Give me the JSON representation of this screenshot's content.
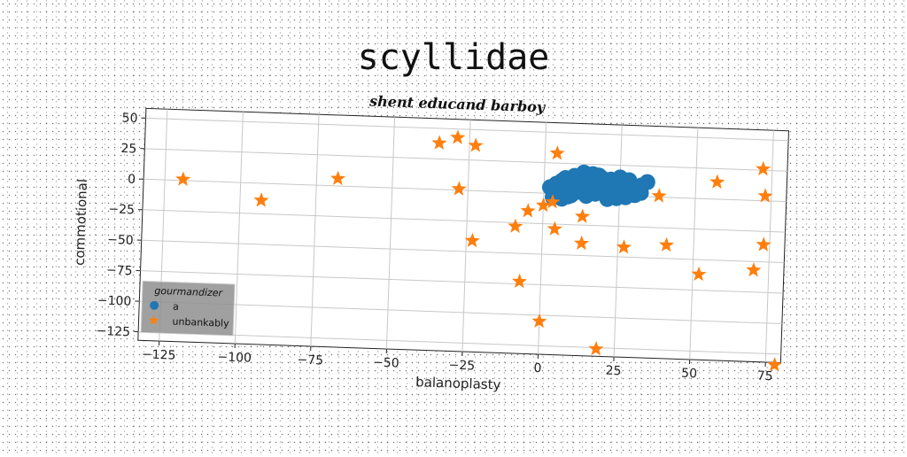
{
  "chart_data": {
    "type": "scatter",
    "title": "scyllidae",
    "subtitle": "shent educand barboy",
    "xlabel": "balanoplasty",
    "ylabel": "commotional",
    "xlim": [
      -132,
      80
    ],
    "ylim": [
      -132,
      58
    ],
    "xticks": [
      -125,
      -100,
      -75,
      -50,
      -25,
      0,
      25,
      50,
      75
    ],
    "yticks": [
      50,
      25,
      0,
      -25,
      -50,
      -75,
      -100,
      -125
    ],
    "grid": true,
    "legend": {
      "title": "gourmandizer",
      "placement": "lower-left"
    },
    "colors": {
      "a": "#1f77b4",
      "unbankably": "#ff7f0e"
    },
    "series": [
      {
        "name": "a",
        "marker": "circle",
        "points": [
          [
            2,
            5
          ],
          [
            4,
            8
          ],
          [
            6,
            11
          ],
          [
            8,
            5
          ],
          [
            10,
            9
          ],
          [
            12,
            14
          ],
          [
            14,
            10
          ],
          [
            16,
            7
          ],
          [
            18,
            12
          ],
          [
            20,
            8
          ],
          [
            22,
            4
          ],
          [
            24,
            10
          ],
          [
            26,
            6
          ],
          [
            28,
            11
          ],
          [
            30,
            8
          ],
          [
            32,
            9
          ],
          [
            34,
            12
          ],
          [
            5,
            0
          ],
          [
            8,
            -2
          ],
          [
            11,
            2
          ],
          [
            14,
            -1
          ],
          [
            17,
            1
          ],
          [
            20,
            3
          ],
          [
            23,
            0
          ],
          [
            26,
            2
          ],
          [
            29,
            4
          ],
          [
            32,
            3
          ],
          [
            3,
            -3
          ],
          [
            6,
            -4
          ],
          [
            9,
            -1
          ],
          [
            12,
            4
          ],
          [
            15,
            3
          ],
          [
            18,
            16
          ],
          [
            21,
            -3
          ],
          [
            24,
            -2
          ],
          [
            27,
            -1
          ],
          [
            30,
            1
          ],
          [
            10,
            15
          ],
          [
            13,
            18
          ],
          [
            16,
            17
          ],
          [
            19,
            14
          ],
          [
            7,
            13
          ],
          [
            22,
            13
          ],
          [
            25,
            15
          ],
          [
            28,
            13
          ]
        ]
      },
      {
        "name": "unbankably",
        "marker": "star",
        "points": [
          [
            -119,
            1
          ],
          [
            -93,
            -14
          ],
          [
            -68,
            6
          ],
          [
            -35,
            38
          ],
          [
            -29,
            43
          ],
          [
            -23,
            37
          ],
          [
            -28,
            1
          ],
          [
            -23,
            -41
          ],
          [
            -9,
            -28
          ],
          [
            -5,
            -15
          ],
          [
            -7,
            -73
          ],
          [
            0,
            -10
          ],
          [
            0,
            -105
          ],
          [
            3,
            -7
          ],
          [
            4,
            -29
          ],
          [
            4,
            33
          ],
          [
            13,
            -18
          ],
          [
            13,
            -40
          ],
          [
            19,
            -126
          ],
          [
            27,
            -42
          ],
          [
            38,
            1
          ],
          [
            41,
            -39
          ],
          [
            52,
            -62
          ],
          [
            57,
            14
          ],
          [
            70,
            -57
          ],
          [
            72,
            26
          ],
          [
            73,
            4
          ],
          [
            73,
            -36
          ],
          [
            78,
            -134
          ]
        ]
      }
    ]
  }
}
